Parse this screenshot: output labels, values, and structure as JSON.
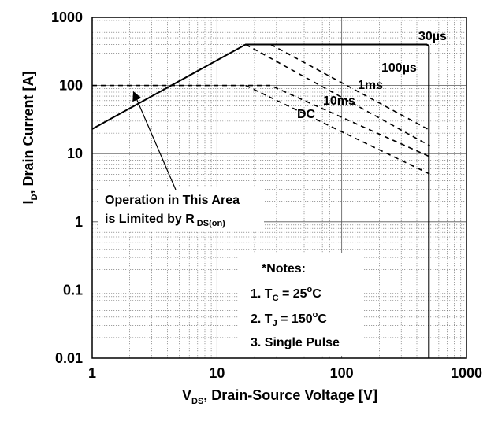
{
  "chart_data": {
    "type": "line",
    "x_scale": "log",
    "y_scale": "log",
    "xlim": [
      1,
      1000
    ],
    "ylim": [
      0.01,
      1000
    ],
    "x_ticks": [
      "1",
      "10",
      "100",
      "1000"
    ],
    "y_ticks": [
      "1000",
      "100",
      "10",
      "1",
      "0.1",
      "0.01"
    ],
    "xlabel": {
      "main": "V",
      "sub": "DS",
      "rest": ", Drain-Source Voltage [V]"
    },
    "ylabel": {
      "main": "I",
      "sub": "D",
      "rest": ", Drain Current [A]"
    },
    "grid": true,
    "series": [
      {
        "name": "30µs",
        "style": "solid",
        "points": [
          [
            1,
            23
          ],
          [
            17,
            400
          ],
          [
            480,
            400
          ],
          [
            500,
            380
          ],
          [
            500,
            0.01
          ]
        ]
      },
      {
        "name": "100µs",
        "style": "dashed",
        "points": [
          [
            17,
            400
          ],
          [
            510,
            13
          ]
        ]
      },
      {
        "name": "1ms",
        "style": "dashed",
        "points": [
          [
            27,
            400
          ],
          [
            510,
            22
          ]
        ]
      },
      {
        "name": "10ms",
        "style": "dashed",
        "points": [
          [
            1,
            100
          ],
          [
            27,
            100
          ],
          [
            510,
            9
          ]
        ]
      },
      {
        "name": "DC",
        "style": "dashed",
        "points": [
          [
            17,
            100
          ],
          [
            510,
            5
          ]
        ]
      }
    ],
    "series_labels": [
      "30µs",
      "100µs",
      "1ms",
      "10ms",
      "DC"
    ],
    "annotation": {
      "line1": "Operation in This Area",
      "line2_main": "is Limited by R",
      "line2_sub": "DS(on)"
    },
    "notes": {
      "title": "*Notes:",
      "note1_pre": "1. T",
      "note1_sub": "C",
      "note1_mid": " = 25",
      "note1_sup": "o",
      "note1_post": "C",
      "note2_pre": "2. T",
      "note2_sub": "J",
      "note2_mid": " = 150",
      "note2_sup": "o",
      "note2_post": "C",
      "note3": "3. Single Pulse"
    }
  }
}
